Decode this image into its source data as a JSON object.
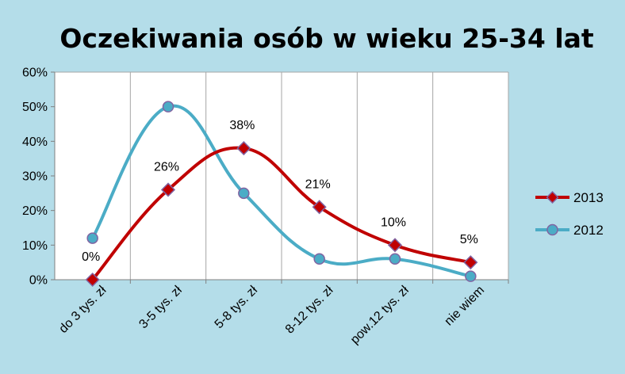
{
  "chart_data": {
    "type": "line",
    "title": "Oczekiwania osób w wieku 25-34 lat",
    "categories": [
      "do 3 tys. zł",
      "3-5 tys. zł",
      "5-8 tys. zł",
      "8-12 tys. zł",
      "pow.12 tys. zł",
      "nie wiem"
    ],
    "y_ticks": [
      "0%",
      "10%",
      "20%",
      "30%",
      "40%",
      "50%",
      "60%"
    ],
    "ylim": [
      0,
      60
    ],
    "grid": "vertical",
    "legend_position": "right",
    "series": [
      {
        "name": "2013",
        "values": [
          0,
          26,
          38,
          21,
          10,
          5
        ],
        "color": "#c00000",
        "marker": "diamond",
        "marker_color": "#c00000",
        "marker_edge": "#8064a2",
        "labels": [
          "0%",
          "26%",
          "38%",
          "21%",
          "10%",
          "5%"
        ]
      },
      {
        "name": "2012",
        "values": [
          12,
          50,
          25,
          6,
          6,
          1
        ],
        "color": "#4bacc6",
        "marker": "circle",
        "marker_color": "#4bacc6",
        "marker_edge": "#8064a2"
      }
    ]
  }
}
